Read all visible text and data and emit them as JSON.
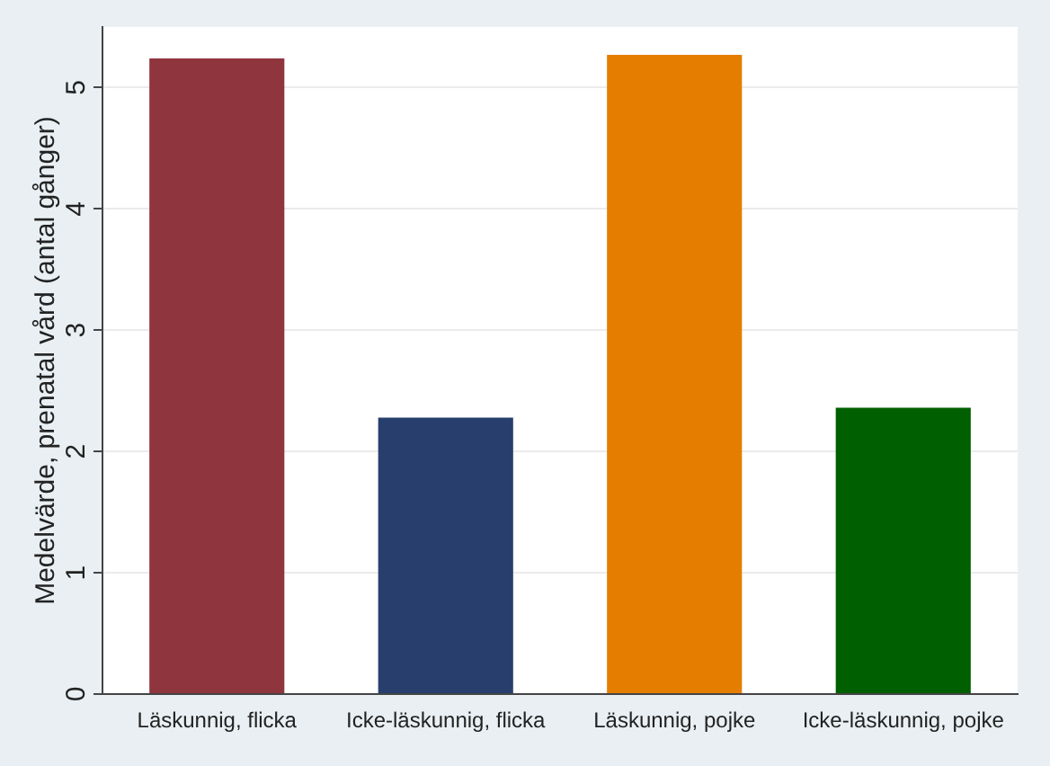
{
  "chart_data": {
    "type": "bar",
    "ylabel": "Medelvärde, prenatal vård (antal gånger)",
    "categories": [
      "Läskunnig, flicka",
      "Icke-läskunnig, flicka",
      "Läskunnig, pojke",
      "Icke-läskunnig, pojke"
    ],
    "values": [
      5.24,
      2.28,
      5.27,
      2.36
    ],
    "colors": [
      "#8f353d",
      "#283f6d",
      "#e57e00",
      "#005f00"
    ],
    "ylim": [
      0,
      5.5
    ],
    "yticks": [
      0,
      1,
      2,
      3,
      4,
      5
    ],
    "grid": "y"
  }
}
